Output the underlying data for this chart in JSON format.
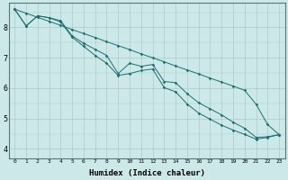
{
  "xlabel": "Humidex (Indice chaleur)",
  "bg_color": "#cce8e8",
  "line_color": "#1a7070",
  "grid_color": "#aacccc",
  "xlim": [
    -0.5,
    23.5
  ],
  "ylim": [
    3.7,
    8.8
  ],
  "xticks": [
    0,
    1,
    2,
    3,
    4,
    5,
    6,
    7,
    8,
    9,
    10,
    11,
    12,
    13,
    14,
    15,
    16,
    17,
    18,
    19,
    20,
    21,
    22,
    23
  ],
  "yticks": [
    4,
    5,
    6,
    7,
    8
  ],
  "line1_y": [
    8.6,
    8.05,
    8.38,
    8.32,
    8.22,
    7.72,
    7.48,
    7.28,
    7.08,
    6.48,
    6.82,
    6.72,
    6.78,
    6.22,
    6.18,
    5.82,
    5.52,
    5.32,
    5.12,
    4.88,
    4.68,
    4.38,
    4.4,
    4.47
  ],
  "line2_y": [
    8.6,
    8.47,
    8.33,
    8.2,
    8.07,
    7.93,
    7.8,
    7.67,
    7.53,
    7.4,
    7.27,
    7.13,
    7.0,
    6.87,
    6.73,
    6.6,
    6.47,
    6.33,
    6.2,
    6.07,
    5.93,
    5.47,
    4.8,
    4.47
  ],
  "line3_y": [
    8.6,
    8.05,
    8.38,
    8.32,
    8.18,
    7.68,
    7.38,
    7.08,
    6.82,
    6.42,
    6.48,
    6.58,
    6.63,
    6.02,
    5.88,
    5.48,
    5.18,
    4.98,
    4.78,
    4.62,
    4.48,
    4.32,
    4.38,
    4.47
  ]
}
